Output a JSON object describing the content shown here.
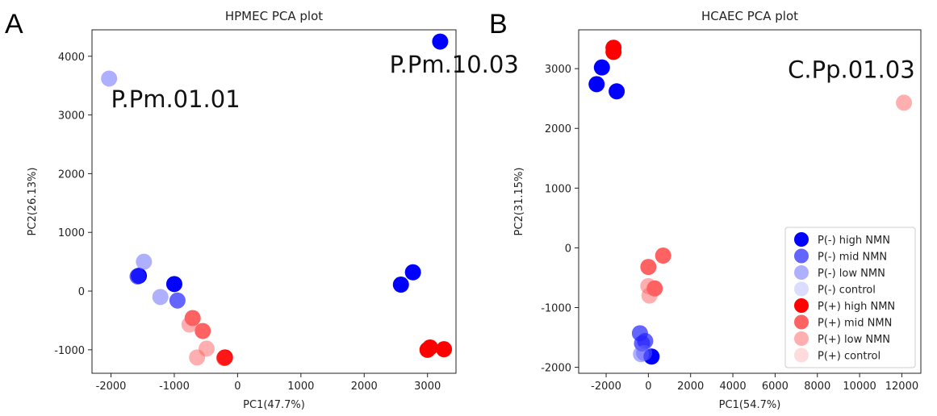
{
  "chart_data": [
    {
      "panel": "A",
      "type": "scatter",
      "title": "HPMEC PCA plot",
      "xlabel": "PC1(47.7%)",
      "ylabel": "PC2(26.13%)",
      "xlim": [
        -2300,
        3450
      ],
      "ylim": [
        -1400,
        4450
      ],
      "xticks": [
        -2000,
        -1000,
        0,
        1000,
        2000,
        3000
      ],
      "yticks": [
        -1000,
        0,
        1000,
        2000,
        3000,
        4000
      ],
      "annotations": [
        {
          "text": "P.Pm.10.03",
          "x": 2400,
          "y": 3720
        },
        {
          "text": "P.Pm.01.01",
          "x": -2000,
          "y": 3130
        }
      ],
      "series": [
        {
          "name": "P(-) high NMN",
          "color": "#0000ff",
          "alpha": 1.0,
          "points": [
            [
              3200,
              4250
            ],
            [
              2580,
              110
            ],
            [
              2770,
              320
            ],
            [
              -1560,
              260
            ],
            [
              -1000,
              120
            ]
          ]
        },
        {
          "name": "P(-) mid NMN",
          "color": "#2222ff",
          "alpha": 0.7,
          "points": [
            [
              -950,
              -160
            ],
            [
              -1580,
              250
            ]
          ]
        },
        {
          "name": "P(-) low NMN",
          "color": "#6060ff",
          "alpha": 0.5,
          "points": [
            [
              -2030,
              3620
            ],
            [
              -1480,
              500
            ],
            [
              -1220,
              -100
            ]
          ]
        },
        {
          "name": "P(-) control",
          "color": "#9a9aff",
          "alpha": 0.35,
          "points": []
        },
        {
          "name": "P(+) high NMN",
          "color": "#ff0000",
          "alpha": 1.0,
          "points": [
            [
              3000,
              -1000
            ],
            [
              3040,
              -960
            ],
            [
              3260,
              -990
            ],
            [
              -200,
              -1130
            ]
          ]
        },
        {
          "name": "P(+) mid NMN",
          "color": "#ff2020",
          "alpha": 0.7,
          "points": [
            [
              -710,
              -460
            ],
            [
              -550,
              -680
            ],
            [
              -210,
              -1140
            ]
          ]
        },
        {
          "name": "P(+) low NMN",
          "color": "#ff6060",
          "alpha": 0.5,
          "points": [
            [
              -760,
              -570
            ],
            [
              -490,
              -980
            ],
            [
              -640,
              -1130
            ]
          ]
        },
        {
          "name": "P(+) control",
          "color": "#ff9a9a",
          "alpha": 0.35,
          "points": []
        }
      ]
    },
    {
      "panel": "B",
      "type": "scatter",
      "title": "HCAEC PCA plot",
      "xlabel": "PC1(54.7%)",
      "ylabel": "PC2(31.15%)",
      "xlim": [
        -3300,
        12900
      ],
      "ylim": [
        -2100,
        3650
      ],
      "xticks": [
        -2000,
        0,
        2000,
        4000,
        6000,
        8000,
        10000,
        12000
      ],
      "yticks": [
        -2000,
        -1000,
        0,
        1000,
        2000,
        3000
      ],
      "annotations": [
        {
          "text": "C.Pp.01.03",
          "x": 6600,
          "y": 2850
        }
      ],
      "legend": {
        "location": "lower-right",
        "entries": [
          "P(-) high NMN",
          "P(-) mid NMN",
          "P(-) low NMN",
          "P(-) control",
          "P(+) high NMN",
          "P(+) mid NMN",
          "P(+) low NMN",
          "P(+) control"
        ]
      },
      "series": [
        {
          "name": "P(-) high NMN",
          "color": "#0000ff",
          "alpha": 1.0,
          "points": [
            [
              -2200,
              3020
            ],
            [
              -2450,
              2740
            ],
            [
              -1500,
              2620
            ],
            [
              150,
              -1820
            ]
          ]
        },
        {
          "name": "P(-) mid NMN",
          "color": "#2222ff",
          "alpha": 0.7,
          "points": [
            [
              -400,
              -1430
            ],
            [
              -300,
              -1600
            ],
            [
              -150,
              -1560
            ]
          ]
        },
        {
          "name": "P(-) low NMN",
          "color": "#6060ff",
          "alpha": 0.5,
          "points": [
            [
              -350,
              -1780
            ],
            [
              -200,
              -1760
            ]
          ]
        },
        {
          "name": "P(-) control",
          "color": "#9a9aff",
          "alpha": 0.35,
          "points": []
        },
        {
          "name": "P(+) high NMN",
          "color": "#ff0000",
          "alpha": 1.0,
          "points": [
            [
              -1650,
              3350
            ],
            [
              -1650,
              3280
            ]
          ]
        },
        {
          "name": "P(+) mid NMN",
          "color": "#ff2020",
          "alpha": 0.7,
          "points": [
            [
              700,
              -130
            ],
            [
              0,
              -320
            ],
            [
              300,
              -680
            ]
          ]
        },
        {
          "name": "P(+) low NMN",
          "color": "#ff6060",
          "alpha": 0.5,
          "points": [
            [
              12100,
              2430
            ],
            [
              0,
              -640
            ],
            [
              50,
              -800
            ]
          ]
        },
        {
          "name": "P(+) control",
          "color": "#ff9a9a",
          "alpha": 0.35,
          "points": []
        }
      ]
    }
  ]
}
